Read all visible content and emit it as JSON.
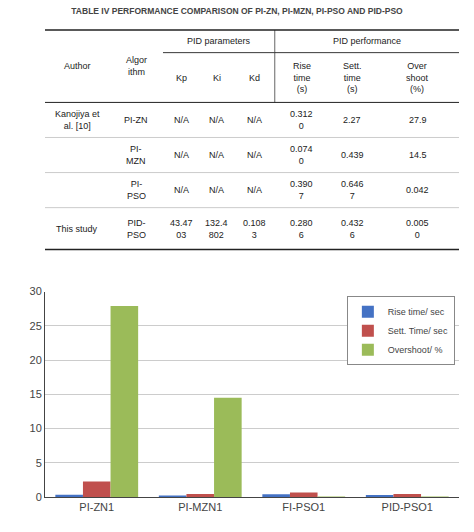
{
  "chart_data": [
    {
      "type": "table",
      "title": "TABLE IV PERFORMANCE COMPARISON OF PI-ZN, PI-MZN, PI-PSO AND PID-PSO",
      "columns": [
        "Author",
        "Algor\nithm",
        "Kp",
        "Ki",
        "Kd",
        "Rise\ntime\n(s)",
        "Sett.\ntime\n(s)",
        "Over\nshoot\n(%)"
      ],
      "header_groups": [
        {
          "label": "PID parameters",
          "columns": [
            "Kp",
            "Ki",
            "Kd"
          ]
        },
        {
          "label": "PID performance",
          "columns": [
            "Rise\ntime\n(s)",
            "Sett.\ntime\n(s)",
            "Over\nshoot\n(%)"
          ]
        }
      ],
      "rows": [
        [
          "Kanojiya et\nal. [10]",
          "PI-ZN",
          "N/A",
          "N/A",
          "N/A",
          "0.312\n0",
          "2.27",
          "27.9"
        ],
        [
          "",
          "PI-\nMZN",
          "N/A",
          "N/A",
          "N/A",
          "0.074\n0",
          "0.439",
          "14.5"
        ],
        [
          "",
          "PI-\nPSO",
          "N/A",
          "N/A",
          "N/A",
          "0.390\n7",
          "0.646\n7",
          "0.042"
        ],
        [
          "This study",
          "PID-\nPSO",
          "43.47\n03",
          "132.4\n802",
          "0.108\n3",
          "0.280\n6",
          "0.432\n6",
          "0.005\n0"
        ]
      ]
    },
    {
      "type": "bar",
      "categories": [
        "PI-ZN1",
        "PI-MZN1",
        "FI-PSO1",
        "PID-PSO1"
      ],
      "series": [
        {
          "name": "Rise time/ sec",
          "color": "#4472C4",
          "values": [
            0.312,
            0.074,
            0.3907,
            0.2806
          ]
        },
        {
          "name": "Sett. Time/ sec",
          "color": "#C0504D",
          "values": [
            2.27,
            0.439,
            0.6467,
            0.4326
          ]
        },
        {
          "name": "Overshoot/ %",
          "color": "#9BBB59",
          "values": [
            27.9,
            14.5,
            0.042,
            0.005
          ]
        }
      ],
      "ylim": [
        0,
        30
      ],
      "yticks": [
        0,
        5,
        10,
        15,
        20,
        25,
        30
      ],
      "grid": true,
      "legend": "upper right"
    }
  ]
}
